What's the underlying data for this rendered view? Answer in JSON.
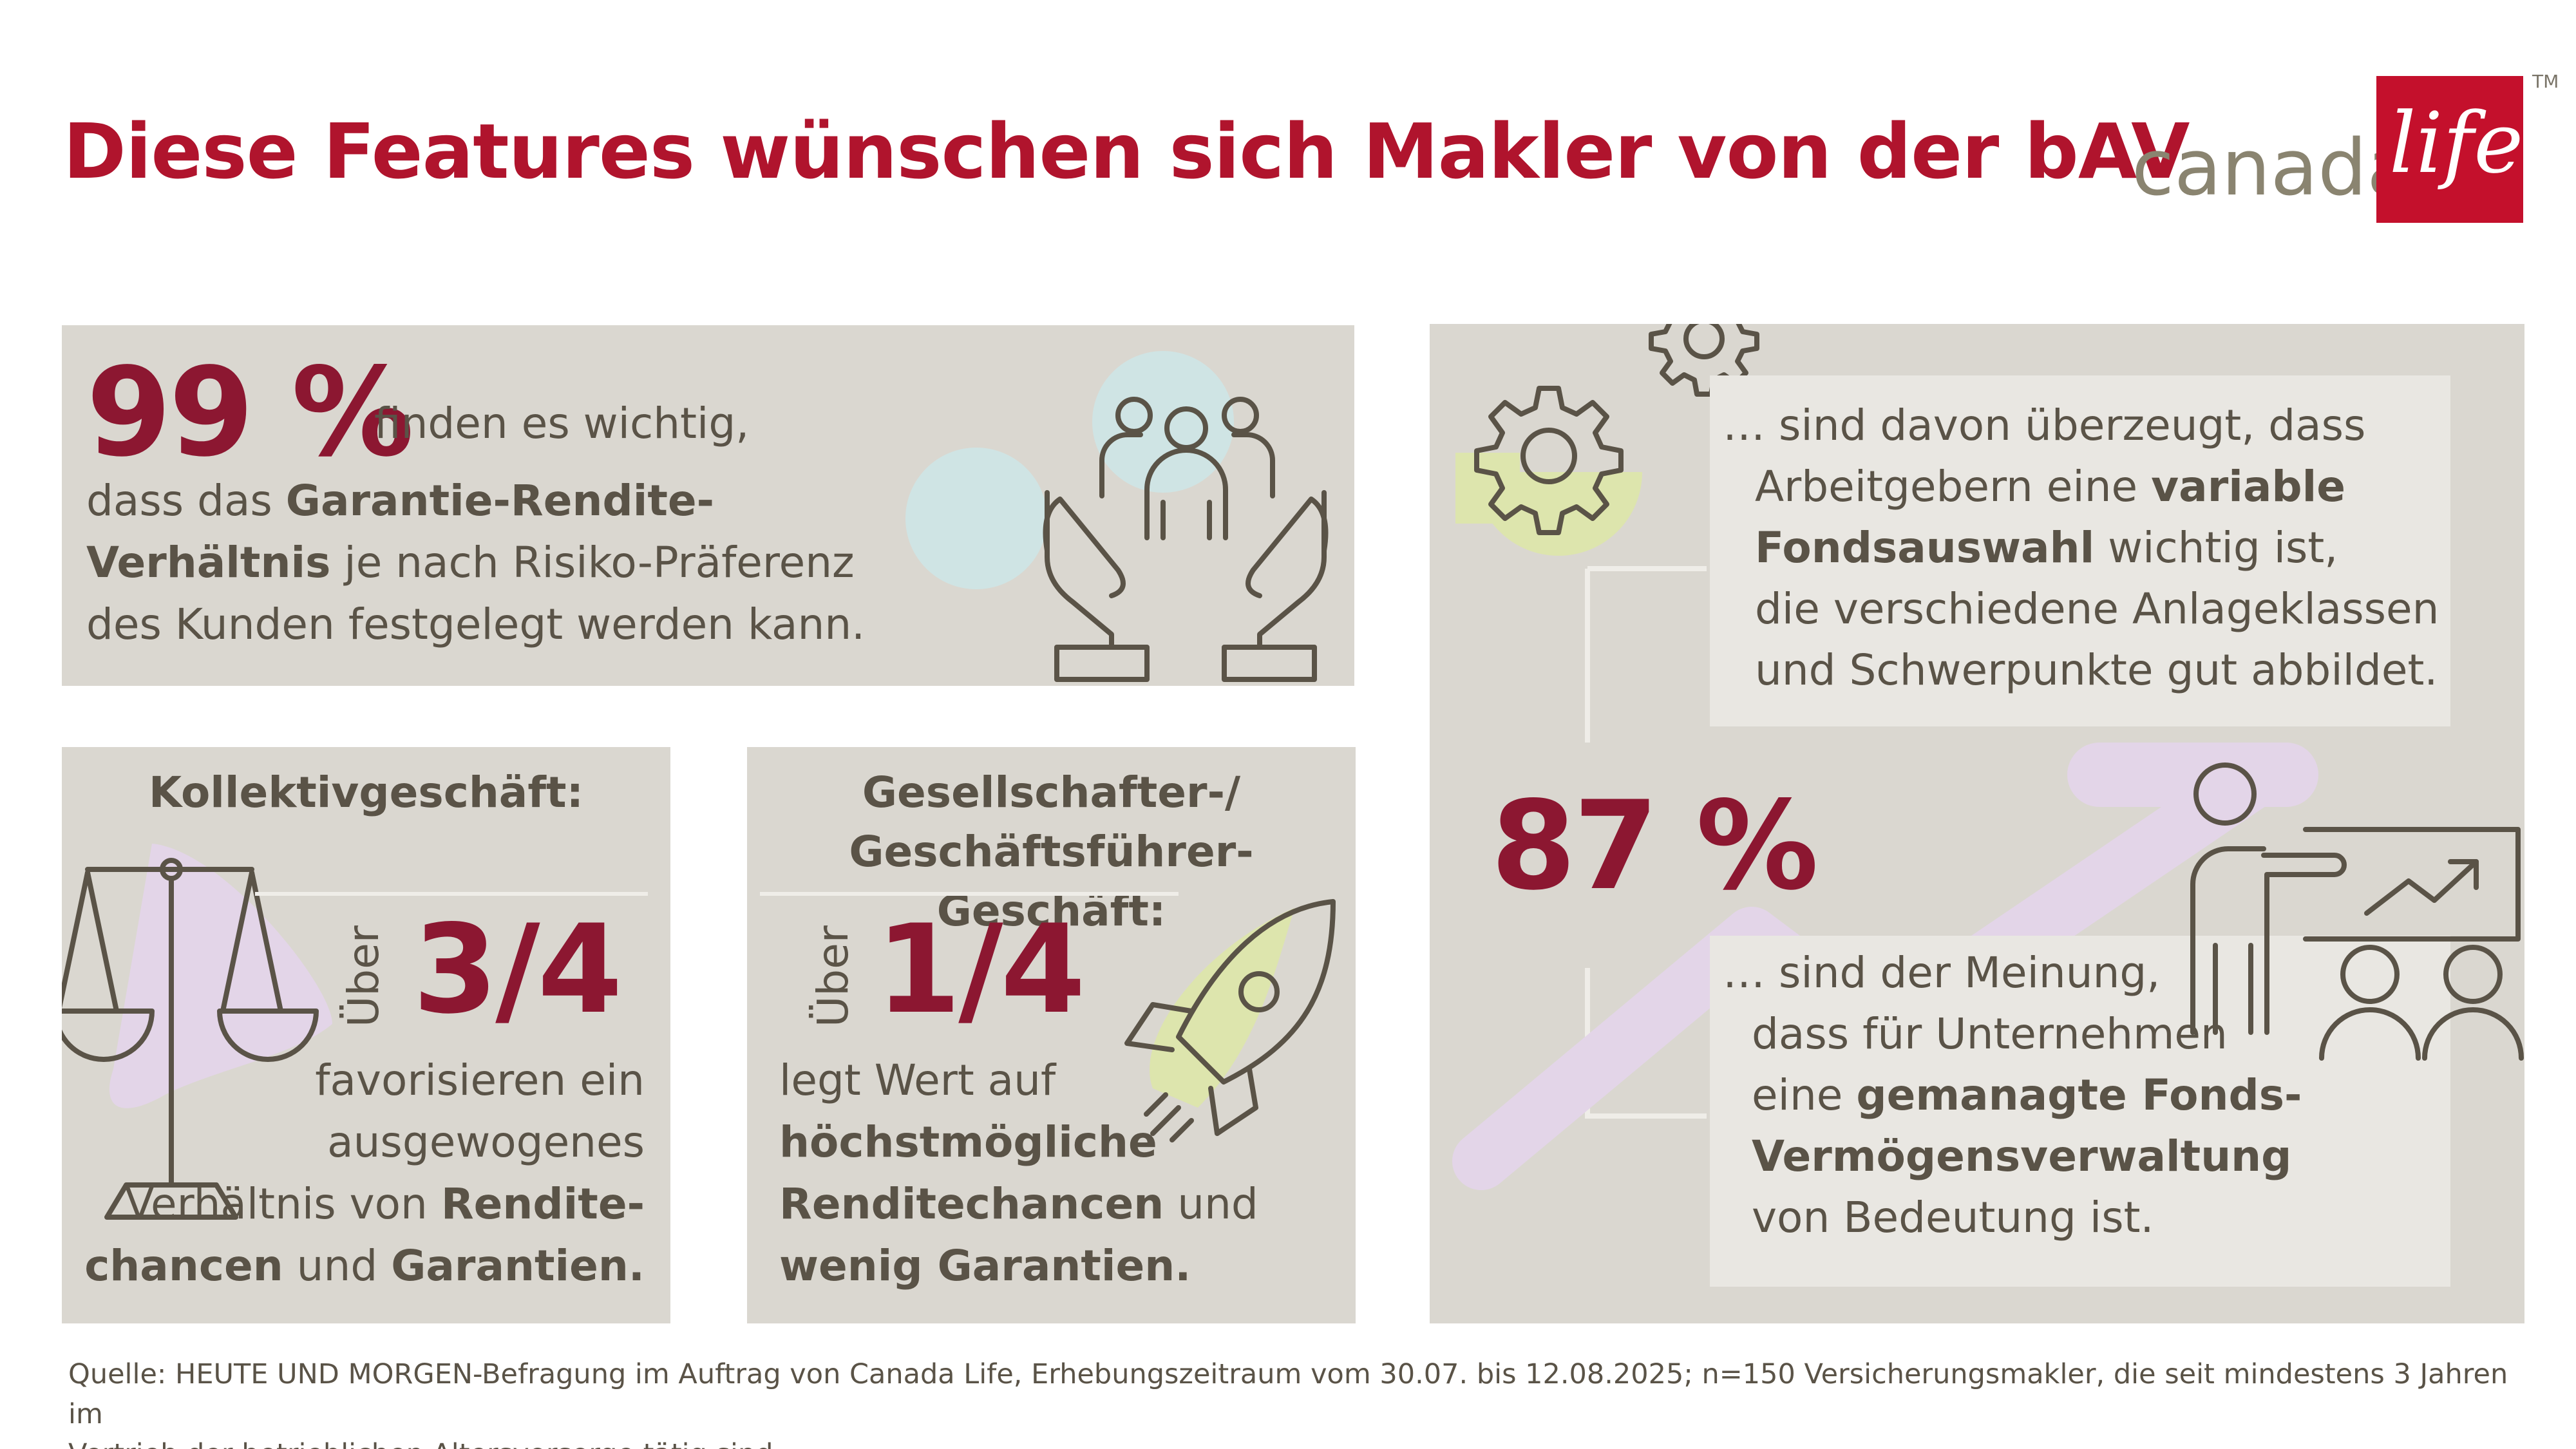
{
  "title": "Diese Features wünschen sich Makler von der bAV",
  "logo": {
    "word": "canada",
    "box_word": "life",
    "tm": "TM"
  },
  "colors": {
    "brand_red": "#c4102c",
    "headline_red": "#b0142d",
    "number_red": "#8c1731",
    "panel": "#dad7d0",
    "text": "#5a5347",
    "accent_green": "#dde5ad",
    "accent_blue": "#cfe4e4",
    "accent_lilac": "#e3d5e8"
  },
  "stat1": {
    "value": "99 %",
    "line1": "finden es wichtig,",
    "line2_a": "dass das ",
    "line2_b": "Garantie-Rendite-",
    "line3_a": "Verhältnis",
    "line3_b": " je nach Risiko-Präferenz",
    "line4": "des Kunden festgelegt werden kann.",
    "icon": "hands-holding-people-icon"
  },
  "stat2": {
    "heading": "Kollektivgeschäft:",
    "prefix": "Über",
    "value": "3/4",
    "line1": "favorisieren ein",
    "line2": "ausgewogenes",
    "line3_a": "Verhältnis von ",
    "line3_b": "Rendite-",
    "line4_a": "chancen",
    "line4_b": " und ",
    "line4_c": "Garantien.",
    "icon": "scale-icon"
  },
  "stat3": {
    "heading_line1": "Gesellschafter-/",
    "heading_line2": "Geschäftsführer-Geschäft:",
    "prefix": "Über",
    "value": "1/4",
    "line1": "legt Wert auf",
    "line2": "höchstmögliche",
    "line3_a": "Renditechancen",
    "line3_b": " und",
    "line4": "wenig Garantien.",
    "icon": "rocket-icon"
  },
  "stat4": {
    "value": "87 %",
    "card1": {
      "line1": "… sind davon überzeugt, dass",
      "line2_a": "Arbeitgebern eine ",
      "line2_b": "variable",
      "line3_a": "Fondsauswahl",
      "line3_b": " wichtig ist,",
      "line4": "die verschiedene Anlageklassen",
      "line5": "und Schwerpunkte gut abbildet."
    },
    "card2": {
      "line1": "… sind der Meinung,",
      "line2": "dass für Unternehmen",
      "line3_a": "eine ",
      "line3_b": "gemanagte Fonds-",
      "line4": "Vermögensverwaltung",
      "line5": "von Bedeutung ist."
    },
    "icons": [
      "gears-icon",
      "presenter-chart-icon"
    ]
  },
  "footer": {
    "line1": "Quelle: HEUTE UND MORGEN-Befragung im Auftrag von Canada Life, Erhebungszeitraum vom 30.07. bis 12.08.2025; n=150 Versicherungsmakler, die seit mindestens 3 Jahren im",
    "line2": "Vertrieb der betrieblichen Altersvorsorge tätig sind."
  }
}
